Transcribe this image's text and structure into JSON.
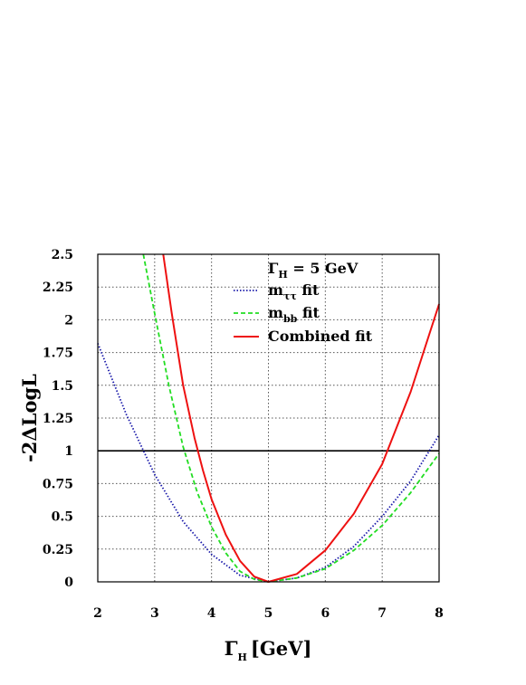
{
  "chart_data": {
    "type": "line",
    "xlabel_main": "Γ",
    "xlabel_sub": "H",
    "xlabel_unit": "[GeV]",
    "ylabel": "-2ΔLogL",
    "xlim": [
      2,
      8
    ],
    "ylim": [
      0,
      2.5
    ],
    "x_ticks": [
      "2",
      "3",
      "4",
      "5",
      "6",
      "7",
      "8"
    ],
    "y_ticks": [
      "0",
      "0.25",
      "0.5",
      "0.75",
      "1",
      "1.25",
      "1.5",
      "1.75",
      "2",
      "2.25",
      "2.5"
    ],
    "grid": true,
    "legend_placement": "top-right",
    "legend_title": {
      "main": "Γ",
      "sub": "H",
      "rest": " = 5 GeV"
    },
    "reference_line": {
      "y": 1,
      "color": "#000000"
    },
    "series": [
      {
        "label_main": "m",
        "label_sub": "ττ",
        "label_rest": " fit",
        "color": "#1a1aaa",
        "style": "dotted",
        "x": [
          2.0,
          2.5,
          3.0,
          3.5,
          4.0,
          4.5,
          5.0,
          5.5,
          6.0,
          6.5,
          7.0,
          7.5,
          8.0
        ],
        "y": [
          1.82,
          1.28,
          0.82,
          0.46,
          0.21,
          0.05,
          0.0,
          0.03,
          0.11,
          0.27,
          0.5,
          0.77,
          1.12
        ]
      },
      {
        "label_main": "m",
        "label_sub": "bb",
        "label_rest": " fit",
        "color": "#22dd22",
        "style": "dashed",
        "x": [
          2.8,
          3.0,
          3.25,
          3.5,
          3.75,
          4.0,
          4.25,
          4.5,
          4.75,
          5.0,
          5.5,
          6.0,
          6.5,
          7.0,
          7.5,
          8.0
        ],
        "y": [
          2.5,
          2.05,
          1.5,
          1.03,
          0.68,
          0.42,
          0.22,
          0.08,
          0.02,
          0.0,
          0.03,
          0.1,
          0.24,
          0.43,
          0.68,
          0.98
        ]
      },
      {
        "label": "Combined fit",
        "color": "#ee1111",
        "style": "solid",
        "x": [
          3.15,
          3.3,
          3.5,
          3.7,
          3.85,
          4.0,
          4.25,
          4.5,
          4.75,
          5.0,
          5.5,
          6.0,
          6.5,
          7.0,
          7.5,
          8.0
        ],
        "y": [
          2.5,
          2.05,
          1.5,
          1.1,
          0.85,
          0.63,
          0.36,
          0.16,
          0.04,
          0.0,
          0.06,
          0.24,
          0.52,
          0.9,
          1.45,
          2.12
        ]
      }
    ]
  }
}
